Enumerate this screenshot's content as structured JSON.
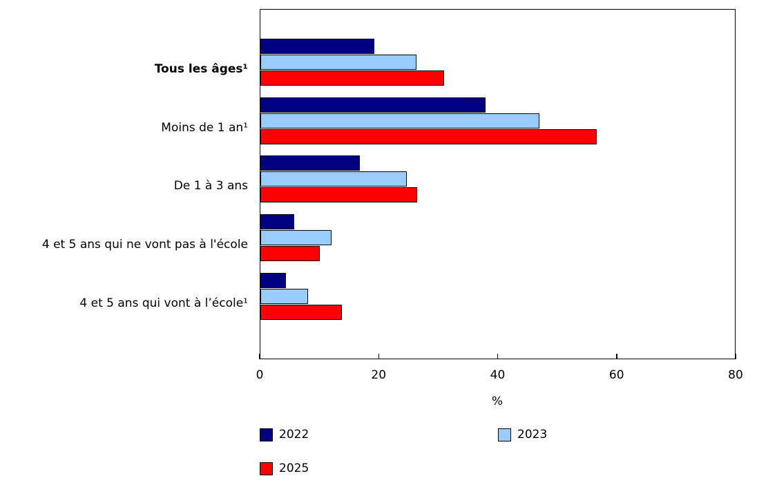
{
  "chart_data": {
    "type": "bar",
    "orientation": "horizontal",
    "title": "",
    "xlabel": "%",
    "ylabel": "",
    "xlim": [
      0,
      80
    ],
    "xticks": [
      0,
      20,
      40,
      60,
      80
    ],
    "grid": false,
    "legend_position": "bottom",
    "categories": [
      "Tous les âges¹",
      "Moins de 1 an¹",
      "De 1 à 3 ans",
      "4 et 5 ans qui ne vont pas à l'école",
      "4 et 5 ans qui vont à l’école¹"
    ],
    "series": [
      {
        "name": "2022",
        "color": "#000080",
        "values": [
          19.2,
          37.9,
          16.7,
          5.7,
          4.3
        ]
      },
      {
        "name": "2023",
        "color": "#99ccff",
        "values": [
          26.2,
          46.9,
          24.6,
          12.0,
          8.0
        ]
      },
      {
        "name": "2025",
        "color": "#ff0000",
        "values": [
          30.9,
          56.6,
          26.4,
          10.0,
          13.7
        ]
      }
    ]
  },
  "axis": {
    "ticks": [
      "0",
      "20",
      "40",
      "60",
      "80"
    ],
    "title": "%"
  },
  "labels": [
    "Tous les âges¹",
    "Moins de 1 an¹",
    "De 1 à 3 ans",
    "4 et 5 ans qui ne vont pas à l'école",
    "4 et 5 ans qui vont à l’école¹"
  ],
  "legend": [
    {
      "label": "2022",
      "color": "#000080"
    },
    {
      "label": "2023",
      "color": "#99ccff"
    },
    {
      "label": "2025",
      "color": "#ff0000"
    }
  ]
}
